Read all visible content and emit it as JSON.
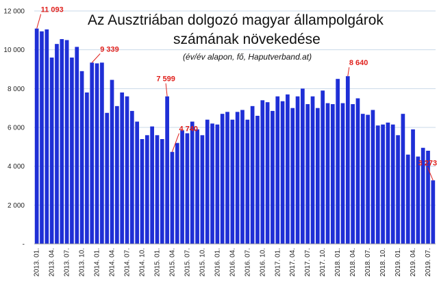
{
  "chart_data": {
    "type": "bar",
    "title_line1": "Az Ausztriában dolgozó magyar állampolgárok",
    "title_line2": "számának növekedése",
    "subtitle": "(év/év alapon, fő, Haputverband.at)",
    "ylim": [
      0,
      12000
    ],
    "y_ticks": [
      "-",
      "2 000",
      "4 000",
      "6 000",
      "8 000",
      "10 000",
      "12 000"
    ],
    "grid": true,
    "bar_color": "#1f2fd6",
    "grid_color": "#c8d8e8",
    "callout_color": "#e0201c",
    "categories": [
      "2013. 01.",
      "2013. 02.",
      "2013. 03.",
      "2013. 04.",
      "2013. 05.",
      "2013. 06.",
      "2013. 07.",
      "2013. 08.",
      "2013. 09.",
      "2013. 10.",
      "2013. 11.",
      "2013. 12.",
      "2014. 01.",
      "2014. 02.",
      "2014. 03.",
      "2014. 04.",
      "2014. 05.",
      "2014. 06.",
      "2014. 07.",
      "2014. 08.",
      "2014. 09.",
      "2014. 10.",
      "2014. 11.",
      "2014. 12.",
      "2015. 01.",
      "2015. 02.",
      "2015. 03.",
      "2015. 04.",
      "2015. 05.",
      "2015. 06.",
      "2015. 07.",
      "2015. 08.",
      "2015. 09.",
      "2015. 10.",
      "2015. 11.",
      "2015. 12.",
      "2016. 01.",
      "2016. 02.",
      "2016. 03.",
      "2016. 04.",
      "2016. 05.",
      "2016. 06.",
      "2016. 07.",
      "2016. 08.",
      "2016. 09.",
      "2016. 10.",
      "2016. 11.",
      "2016. 12.",
      "2017. 01.",
      "2017. 02.",
      "2017. 03.",
      "2017. 04.",
      "2017. 05.",
      "2017. 06.",
      "2017. 07.",
      "2017. 08.",
      "2017. 09.",
      "2017. 10.",
      "2017. 11.",
      "2017. 12.",
      "2018. 01.",
      "2018. 02.",
      "2018. 03.",
      "2018. 04.",
      "2018. 05.",
      "2018. 06.",
      "2018. 07.",
      "2018. 08.",
      "2018. 09.",
      "2018. 10.",
      "2018. 11.",
      "2018. 12.",
      "2019. 01.",
      "2019. 02.",
      "2019. 03.",
      "2019. 04.",
      "2019. 05.",
      "2019. 06.",
      "2019. 07.",
      "2019. 08."
    ],
    "x_tick_labels": [
      "2013. 01.",
      "",
      "",
      "2013. 04.",
      "",
      "",
      "2013. 07.",
      "",
      "",
      "2013. 10.",
      "",
      "",
      "2014. 01.",
      "",
      "",
      "2014. 04.",
      "",
      "",
      "2014. 07.",
      "",
      "",
      "2014. 10.",
      "",
      "",
      "2015. 01.",
      "",
      "",
      "2015. 04.",
      "",
      "",
      "2015. 07.",
      "",
      "",
      "2015. 10.",
      "",
      "",
      "2016. 01.",
      "",
      "",
      "2016. 04.",
      "",
      "",
      "2016. 07.",
      "",
      "",
      "2016. 10.",
      "",
      "",
      "2017. 01.",
      "",
      "",
      "2017. 04.",
      "",
      "",
      "2017. 07.",
      "",
      "",
      "2017. 10.",
      "",
      "",
      "2018. 01.",
      "",
      "",
      "2018. 04.",
      "",
      "",
      "2018. 07.",
      "",
      "",
      "2018. 10.",
      "",
      "",
      "2019. 01.",
      "",
      "",
      "2019. 04.",
      "",
      "",
      "2019. 07.",
      ""
    ],
    "values": [
      11093,
      10950,
      11050,
      9600,
      10300,
      10550,
      10500,
      9600,
      10150,
      8900,
      7800,
      9339,
      9300,
      9339,
      6750,
      8450,
      7100,
      7800,
      7600,
      6850,
      6300,
      5400,
      5600,
      6050,
      5600,
      5400,
      7599,
      4740,
      5200,
      5850,
      5700,
      6300,
      5900,
      5600,
      6400,
      6200,
      6150,
      6700,
      6800,
      6400,
      6800,
      6900,
      6400,
      7100,
      6600,
      7400,
      7300,
      6850,
      7600,
      7350,
      7700,
      7000,
      7600,
      8000,
      7200,
      7600,
      7000,
      7900,
      7250,
      7200,
      8500,
      7250,
      8640,
      7200,
      7500,
      6700,
      6650,
      6900,
      6100,
      6150,
      6250,
      6150,
      5600,
      6700,
      4600,
      5900,
      4500,
      4950,
      4800,
      3273
    ],
    "annotations": [
      {
        "label": "11 093",
        "index": 0
      },
      {
        "label": "9 339",
        "index": 11
      },
      {
        "label": "7 599",
        "index": 26
      },
      {
        "label": "4 740",
        "index": 27
      },
      {
        "label": "8 640",
        "index": 62
      },
      {
        "label": "3 273",
        "index": 79
      }
    ]
  }
}
